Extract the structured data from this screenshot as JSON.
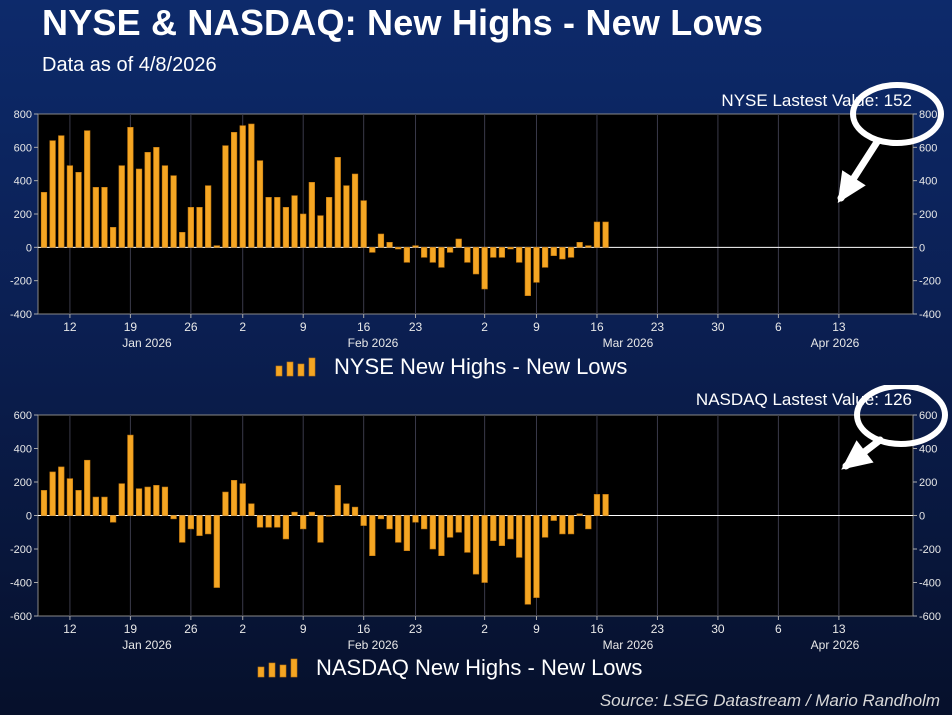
{
  "header": {
    "title": "NYSE & NASDAQ: New Highs - New Lows",
    "subtitle": "Data as of 4/8/2026"
  },
  "footer": {
    "source": "Source: LSEG Datastream / Mario Randholm"
  },
  "colors": {
    "bar": "#f5a623",
    "bar_outline": "#c47a10",
    "plot_bg": "#000000",
    "grid": "#3a3a4a",
    "annotation": "#ffffff"
  },
  "chart_data": [
    {
      "type": "bar",
      "title": "NYSE New Highs - New Lows",
      "legend_label": "NYSE New Highs - New Lows",
      "latest_label": "NYSE Lastest Value: 152",
      "ylim": [
        -400,
        800
      ],
      "yticks": [
        -400,
        -200,
        0,
        200,
        400,
        600,
        800
      ],
      "xtick_labels": [
        "12",
        "19",
        "26",
        "2",
        "9",
        "16",
        "23",
        "2",
        "9",
        "16",
        "23",
        "30",
        "6",
        "13"
      ],
      "month_labels": [
        "Jan 2026",
        "Feb 2026",
        "Mar 2026",
        "Apr 2026"
      ],
      "values": [
        330,
        640,
        670,
        490,
        450,
        700,
        360,
        360,
        120,
        490,
        720,
        470,
        570,
        600,
        490,
        430,
        90,
        240,
        240,
        370,
        10,
        610,
        690,
        730,
        740,
        520,
        300,
        300,
        240,
        310,
        200,
        390,
        190,
        300,
        540,
        370,
        440,
        280,
        -30,
        80,
        30,
        -10,
        -90,
        10,
        -60,
        -90,
        -120,
        -30,
        50,
        -90,
        -160,
        -250,
        -60,
        -60,
        -10,
        -90,
        -290,
        -210,
        -120,
        -50,
        -70,
        -60,
        30,
        10,
        152,
        152
      ]
    },
    {
      "type": "bar",
      "title": "NASDAQ New Highs - New Lows",
      "legend_label": "NASDAQ New Highs - New Lows",
      "latest_label": "NASDAQ Lastest Value: 126",
      "ylim": [
        -600,
        600
      ],
      "yticks": [
        -600,
        -400,
        -200,
        0,
        200,
        400,
        600
      ],
      "xtick_labels": [
        "12",
        "19",
        "26",
        "2",
        "9",
        "16",
        "23",
        "2",
        "9",
        "16",
        "23",
        "30",
        "6",
        "13"
      ],
      "month_labels": [
        "Jan 2026",
        "Feb 2026",
        "Mar 2026",
        "Apr 2026"
      ],
      "values": [
        150,
        260,
        290,
        220,
        150,
        330,
        110,
        110,
        -40,
        190,
        480,
        160,
        170,
        180,
        170,
        -20,
        -160,
        -80,
        -120,
        -110,
        -430,
        140,
        210,
        190,
        70,
        -70,
        -70,
        -70,
        -140,
        20,
        -80,
        20,
        -160,
        0,
        180,
        70,
        50,
        -60,
        -240,
        -20,
        -80,
        -160,
        -210,
        -40,
        -80,
        -200,
        -240,
        -130,
        -100,
        -220,
        -350,
        -400,
        -150,
        -180,
        -140,
        -250,
        -530,
        -490,
        -130,
        -30,
        -110,
        -110,
        10,
        -80,
        126,
        126
      ]
    }
  ]
}
